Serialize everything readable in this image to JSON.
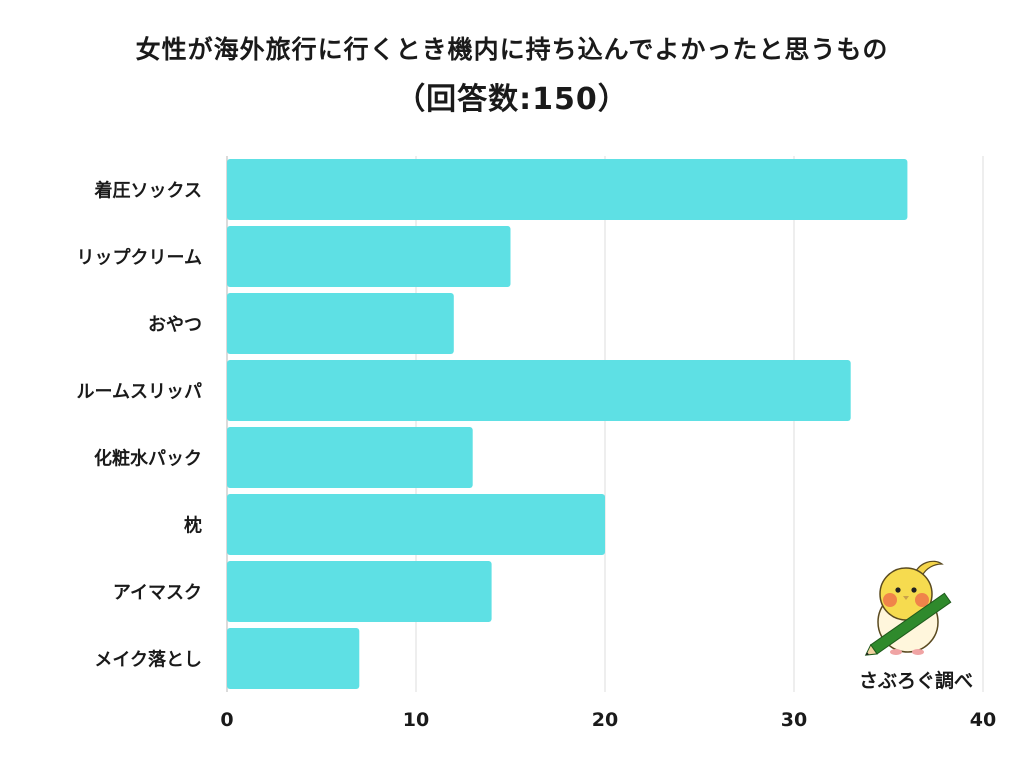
{
  "header": {
    "title": "女性が海外旅行に行くとき機内に持ち込んでよかったと思うもの",
    "subtitle": "（回答数:150）"
  },
  "chart_data": {
    "type": "bar",
    "orientation": "horizontal",
    "title": "女性が海外旅行に行くとき機内に持ち込んでよかったと思うもの",
    "subtitle": "（回答数:150）",
    "categories": [
      "着圧ソックス",
      "リップクリーム",
      "おやつ",
      "ルームスリッパ",
      "化粧水パック",
      "枕",
      "アイマスク",
      "メイク落とし"
    ],
    "values": [
      36,
      15,
      12,
      33,
      13,
      20,
      14,
      7
    ],
    "xlim": [
      0,
      40
    ],
    "xticks": [
      0,
      10,
      20,
      30,
      40
    ],
    "xlabel": "",
    "ylabel": "",
    "grid": true,
    "bar_color": "#5ee0e4"
  },
  "credit": {
    "text": "さぶろぐ調べ"
  }
}
